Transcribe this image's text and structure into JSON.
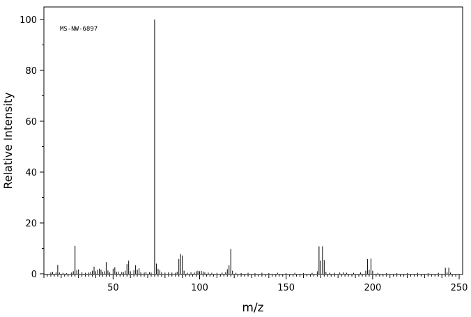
{
  "chart_data": {
    "type": "bar",
    "annotation": "MS-NW-6897",
    "xlabel": "m/z",
    "ylabel": "Relative Intensity",
    "xlim": [
      10,
      252
    ],
    "ylim": [
      0,
      105
    ],
    "x_ticks": [
      50,
      100,
      150,
      200,
      250
    ],
    "y_ticks": [
      0,
      20,
      40,
      60,
      80,
      100
    ],
    "x_ticks_labels": [
      "50",
      "100",
      "150",
      "200",
      "250"
    ],
    "y_ticks_labels": [
      "0",
      "20",
      "40",
      "60",
      "80",
      "100"
    ],
    "grid": false,
    "peaks": [
      {
        "mz": 14,
        "intensity": 0.5
      },
      {
        "mz": 15,
        "intensity": 0.8
      },
      {
        "mz": 17,
        "intensity": 0.6
      },
      {
        "mz": 18,
        "intensity": 3.5
      },
      {
        "mz": 19,
        "intensity": 0.5
      },
      {
        "mz": 21,
        "intensity": 0.4
      },
      {
        "mz": 23,
        "intensity": 0.3
      },
      {
        "mz": 26,
        "intensity": 0.5
      },
      {
        "mz": 27,
        "intensity": 1.0
      },
      {
        "mz": 28,
        "intensity": 11.0
      },
      {
        "mz": 29,
        "intensity": 1.5
      },
      {
        "mz": 30,
        "intensity": 1.7
      },
      {
        "mz": 32,
        "intensity": 0.6
      },
      {
        "mz": 34,
        "intensity": 0.4
      },
      {
        "mz": 36,
        "intensity": 0.5
      },
      {
        "mz": 37,
        "intensity": 0.7
      },
      {
        "mz": 38,
        "intensity": 1.2
      },
      {
        "mz": 39,
        "intensity": 2.8
      },
      {
        "mz": 40,
        "intensity": 1.0
      },
      {
        "mz": 41,
        "intensity": 1.6
      },
      {
        "mz": 42,
        "intensity": 2.0
      },
      {
        "mz": 43,
        "intensity": 1.6
      },
      {
        "mz": 44,
        "intensity": 0.8
      },
      {
        "mz": 45,
        "intensity": 1.0
      },
      {
        "mz": 46,
        "intensity": 4.6
      },
      {
        "mz": 47,
        "intensity": 1.3
      },
      {
        "mz": 48,
        "intensity": 0.6
      },
      {
        "mz": 50,
        "intensity": 2.0
      },
      {
        "mz": 51,
        "intensity": 2.6
      },
      {
        "mz": 52,
        "intensity": 0.8
      },
      {
        "mz": 53,
        "intensity": 0.9
      },
      {
        "mz": 55,
        "intensity": 0.7
      },
      {
        "mz": 56,
        "intensity": 0.6
      },
      {
        "mz": 57,
        "intensity": 1.2
      },
      {
        "mz": 58,
        "intensity": 3.8
      },
      {
        "mz": 59,
        "intensity": 5.2
      },
      {
        "mz": 60,
        "intensity": 1.0
      },
      {
        "mz": 62,
        "intensity": 1.4
      },
      {
        "mz": 63,
        "intensity": 3.4
      },
      {
        "mz": 64,
        "intensity": 1.6
      },
      {
        "mz": 65,
        "intensity": 2.2
      },
      {
        "mz": 66,
        "intensity": 0.6
      },
      {
        "mz": 68,
        "intensity": 0.5
      },
      {
        "mz": 69,
        "intensity": 0.8
      },
      {
        "mz": 71,
        "intensity": 0.6
      },
      {
        "mz": 72,
        "intensity": 0.5
      },
      {
        "mz": 74,
        "intensity": 100.0
      },
      {
        "mz": 75,
        "intensity": 4.0
      },
      {
        "mz": 76,
        "intensity": 2.0
      },
      {
        "mz": 77,
        "intensity": 1.4
      },
      {
        "mz": 78,
        "intensity": 0.6
      },
      {
        "mz": 80,
        "intensity": 0.5
      },
      {
        "mz": 82,
        "intensity": 0.6
      },
      {
        "mz": 84,
        "intensity": 0.5
      },
      {
        "mz": 86,
        "intensity": 0.4
      },
      {
        "mz": 87,
        "intensity": 0.8
      },
      {
        "mz": 88,
        "intensity": 5.8
      },
      {
        "mz": 89,
        "intensity": 7.8
      },
      {
        "mz": 90,
        "intensity": 7.2
      },
      {
        "mz": 91,
        "intensity": 1.2
      },
      {
        "mz": 93,
        "intensity": 0.4
      },
      {
        "mz": 95,
        "intensity": 0.6
      },
      {
        "mz": 97,
        "intensity": 0.5
      },
      {
        "mz": 98,
        "intensity": 1.0
      },
      {
        "mz": 99,
        "intensity": 1.2
      },
      {
        "mz": 100,
        "intensity": 1.0
      },
      {
        "mz": 101,
        "intensity": 1.1
      },
      {
        "mz": 102,
        "intensity": 0.9
      },
      {
        "mz": 103,
        "intensity": 0.6
      },
      {
        "mz": 105,
        "intensity": 0.5
      },
      {
        "mz": 107,
        "intensity": 0.4
      },
      {
        "mz": 110,
        "intensity": 0.4
      },
      {
        "mz": 113,
        "intensity": 0.5
      },
      {
        "mz": 115,
        "intensity": 0.6
      },
      {
        "mz": 116,
        "intensity": 1.8
      },
      {
        "mz": 117,
        "intensity": 3.4
      },
      {
        "mz": 118,
        "intensity": 9.8
      },
      {
        "mz": 119,
        "intensity": 1.2
      },
      {
        "mz": 121,
        "intensity": 0.4
      },
      {
        "mz": 124,
        "intensity": 0.3
      },
      {
        "mz": 128,
        "intensity": 0.4
      },
      {
        "mz": 132,
        "intensity": 0.3
      },
      {
        "mz": 136,
        "intensity": 0.4
      },
      {
        "mz": 140,
        "intensity": 0.3
      },
      {
        "mz": 145,
        "intensity": 0.4
      },
      {
        "mz": 150,
        "intensity": 0.3
      },
      {
        "mz": 155,
        "intensity": 0.4
      },
      {
        "mz": 160,
        "intensity": 0.3
      },
      {
        "mz": 165,
        "intensity": 0.4
      },
      {
        "mz": 168,
        "intensity": 1.0
      },
      {
        "mz": 169,
        "intensity": 10.8
      },
      {
        "mz": 170,
        "intensity": 5.2
      },
      {
        "mz": 171,
        "intensity": 10.8
      },
      {
        "mz": 172,
        "intensity": 5.4
      },
      {
        "mz": 173,
        "intensity": 0.8
      },
      {
        "mz": 175,
        "intensity": 0.4
      },
      {
        "mz": 178,
        "intensity": 0.4
      },
      {
        "mz": 181,
        "intensity": 0.5
      },
      {
        "mz": 183,
        "intensity": 0.6
      },
      {
        "mz": 185,
        "intensity": 0.4
      },
      {
        "mz": 189,
        "intensity": 0.4
      },
      {
        "mz": 193,
        "intensity": 0.5
      },
      {
        "mz": 196,
        "intensity": 1.2
      },
      {
        "mz": 197,
        "intensity": 5.8
      },
      {
        "mz": 198,
        "intensity": 1.6
      },
      {
        "mz": 199,
        "intensity": 6.0
      },
      {
        "mz": 200,
        "intensity": 1.2
      },
      {
        "mz": 203,
        "intensity": 0.4
      },
      {
        "mz": 208,
        "intensity": 0.3
      },
      {
        "mz": 214,
        "intensity": 0.3
      },
      {
        "mz": 220,
        "intensity": 0.3
      },
      {
        "mz": 226,
        "intensity": 0.4
      },
      {
        "mz": 232,
        "intensity": 0.3
      },
      {
        "mz": 238,
        "intensity": 0.4
      },
      {
        "mz": 242,
        "intensity": 2.4
      },
      {
        "mz": 243,
        "intensity": 0.6
      },
      {
        "mz": 244,
        "intensity": 2.4
      },
      {
        "mz": 245,
        "intensity": 0.5
      }
    ]
  }
}
